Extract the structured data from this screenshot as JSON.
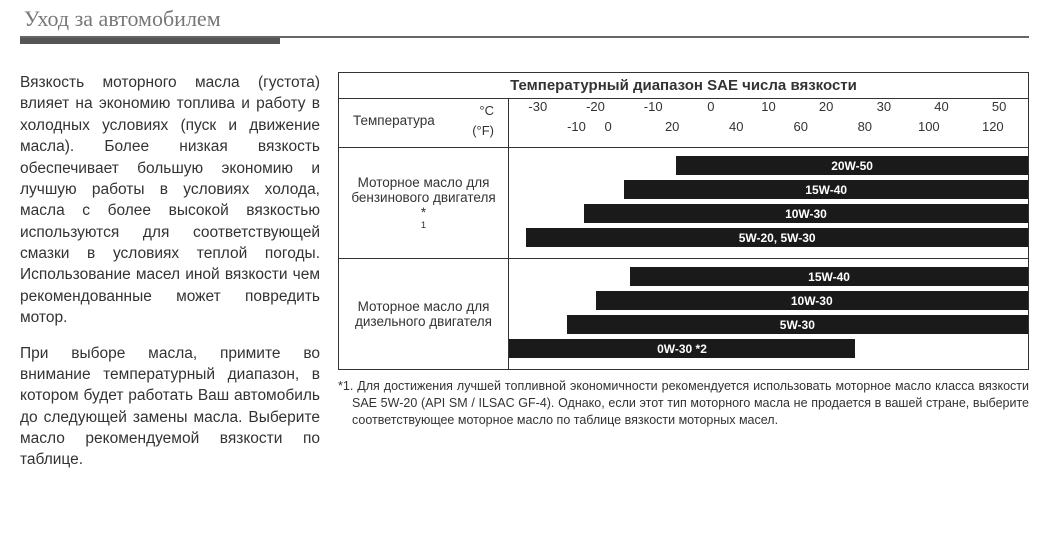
{
  "page_title": "Уход за автомобилем",
  "left": {
    "p1": "Вязкость моторного масла (густота) влияет на экономию топлива и работу в холодных условиях (пуск и движение масла). Более низкая вязкость обеспечивает большую экономию и лучшую работы в условиях холода, масла с более высокой вязкостью используются для соответствующей смазки в условиях теплой погоды. Использование масел иной вязкости чем рекомендованные может повредить мотор.",
    "p2": "При выборе масла, примите во внимание температурный диапазон, в котором будет работать Ваш автомобиль до следующей замены масла. Выберите масло рекомендуемой вязкости по таблице."
  },
  "chart": {
    "title": "Температурный диапазон SAE числа вязкости",
    "temperature_label": "Температура",
    "unit_c": "°C",
    "unit_f": "(°F)",
    "domain_c": [
      -35,
      55
    ],
    "ticks_c": [
      -30,
      -20,
      -10,
      0,
      10,
      20,
      30,
      40,
      50
    ],
    "ticks_f": [
      -10,
      0,
      20,
      40,
      60,
      80,
      100,
      120
    ],
    "ticks_f_at_c": [
      -23.3,
      -17.8,
      -6.7,
      4.4,
      15.6,
      26.7,
      37.8,
      48.9
    ],
    "groups": [
      {
        "label_html": "Моторное масло для бензинового двигателя *<sup>1</sup>",
        "bars": [
          {
            "label": "20W-50",
            "from_c": -6,
            "to_c": 55,
            "color": "#1a1a1a"
          },
          {
            "label": "15W-40",
            "from_c": -15,
            "to_c": 55,
            "color": "#1a1a1a"
          },
          {
            "label": "10W-30",
            "from_c": -22,
            "to_c": 55,
            "color": "#1a1a1a"
          },
          {
            "label": "5W-20, 5W-30",
            "from_c": -32,
            "to_c": 55,
            "color": "#1a1a1a"
          }
        ]
      },
      {
        "label_html": "Моторное масло для дизельного двигателя",
        "bars": [
          {
            "label": "15W-40",
            "from_c": -14,
            "to_c": 55,
            "color": "#1a1a1a"
          },
          {
            "label": "10W-30",
            "from_c": -20,
            "to_c": 55,
            "color": "#1a1a1a"
          },
          {
            "label": "5W-30",
            "from_c": -25,
            "to_c": 55,
            "color": "#1a1a1a"
          },
          {
            "label": "0W-30 *2",
            "from_c": -35,
            "to_c": 25,
            "color": "#1a1a1a"
          }
        ]
      }
    ]
  },
  "footnote_marker": "*1.",
  "footnote": "Для достижения лучшей топливной экономичности рекомендуется использовать моторное масло класса вязкости SAE 5W-20 (API SM / ILSAC GF-4). Однако, если этот тип моторного масла не продается в вашей стране, выберите соответствующее моторное масло по таблице вязкости моторных масел.",
  "colors": {
    "text": "#333333",
    "bar": "#1a1a1a",
    "bar_text": "#ffffff",
    "border": "#333333",
    "title_text": "#777777"
  }
}
